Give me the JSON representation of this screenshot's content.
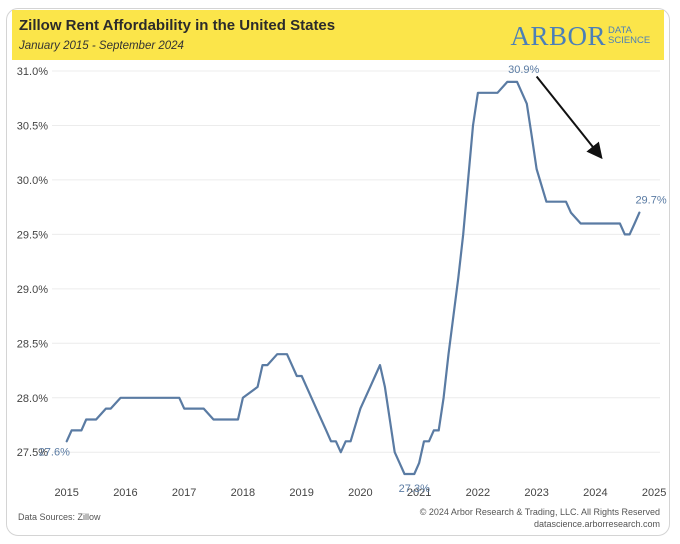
{
  "header": {
    "title": "Zillow Rent Affordability in the United States",
    "subtitle": "January 2015 - September 2024",
    "logo_main": "ARBOR",
    "logo_sub_1": "DATA",
    "logo_sub_2": "SCIENCE"
  },
  "footer": {
    "source": "Data Sources: Zillow",
    "copyright": "© 2024 Arbor Research & Trading, LLC. All Rights Reserved",
    "website": "datascience.arborresearch.com"
  },
  "colors": {
    "banner": "#fbe54a",
    "line": "#5a7ba3",
    "label": "#5a7ba3",
    "arrow": "#111111",
    "brand": "#4b7fb8"
  },
  "chart_data": {
    "type": "line",
    "title": "Zillow Rent Affordability in the United States",
    "subtitle": "January 2015 - September 2024",
    "xlabel": "",
    "ylabel": "",
    "xlim": [
      2014.75,
      2025.1
    ],
    "ylim": [
      27.3,
      31.0
    ],
    "xticks": [
      2015,
      2016,
      2017,
      2018,
      2019,
      2020,
      2021,
      2022,
      2023,
      2024,
      2025
    ],
    "xtick_labels": [
      "2015",
      "2016",
      "2017",
      "2018",
      "2019",
      "2020",
      "2021",
      "2022",
      "2023",
      "2024",
      "2025"
    ],
    "yticks": [
      27.5,
      28.0,
      28.5,
      29.0,
      29.5,
      30.0,
      30.5,
      31.0
    ],
    "ytick_labels": [
      "27.5%",
      "28.0%",
      "28.5%",
      "29.0%",
      "29.5%",
      "30.0%",
      "30.5%",
      "31.0%"
    ],
    "grid": true,
    "series": [
      {
        "name": "Rent Affordability (%)",
        "x": [
          2015.0,
          2015.083,
          2015.25,
          2015.333,
          2015.5,
          2015.667,
          2015.75,
          2015.917,
          2016.0,
          2016.25,
          2016.5,
          2016.75,
          2016.917,
          2017.0,
          2017.25,
          2017.333,
          2017.5,
          2017.75,
          2017.917,
          2018.0,
          2018.25,
          2018.333,
          2018.417,
          2018.583,
          2018.75,
          2018.833,
          2018.917,
          2019.0,
          2019.25,
          2019.417,
          2019.5,
          2019.583,
          2019.667,
          2019.75,
          2019.833,
          2020.0,
          2020.167,
          2020.25,
          2020.333,
          2020.417,
          2020.5,
          2020.583,
          2020.667,
          2020.75,
          2020.833,
          2020.917,
          2021.0,
          2021.083,
          2021.167,
          2021.25,
          2021.333,
          2021.417,
          2021.5,
          2021.667,
          2021.75,
          2021.833,
          2021.917,
          2022.0,
          2022.167,
          2022.25,
          2022.333,
          2022.5,
          2022.583,
          2022.667,
          2022.833,
          2022.917,
          2023.0,
          2023.167,
          2023.333,
          2023.5,
          2023.583,
          2023.75,
          2024.0,
          2024.25,
          2024.333,
          2024.417,
          2024.5,
          2024.583,
          2024.667,
          2024.75
        ],
        "values": [
          27.6,
          27.7,
          27.7,
          27.8,
          27.8,
          27.9,
          27.9,
          28.0,
          28.0,
          28.0,
          28.0,
          28.0,
          28.0,
          27.9,
          27.9,
          27.9,
          27.8,
          27.8,
          27.8,
          28.0,
          28.1,
          28.3,
          28.3,
          28.4,
          28.4,
          28.3,
          28.2,
          28.2,
          27.9,
          27.7,
          27.6,
          27.6,
          27.5,
          27.6,
          27.6,
          27.9,
          28.1,
          28.2,
          28.3,
          28.1,
          27.8,
          27.5,
          27.4,
          27.3,
          27.3,
          27.3,
          27.4,
          27.6,
          27.6,
          27.7,
          27.7,
          28.0,
          28.4,
          29.1,
          29.5,
          30.0,
          30.5,
          30.8,
          30.8,
          30.8,
          30.8,
          30.9,
          30.9,
          30.9,
          30.7,
          30.4,
          30.1,
          29.8,
          29.8,
          29.8,
          29.7,
          29.6,
          29.6,
          29.6,
          29.6,
          29.6,
          29.5,
          29.5,
          29.6,
          29.7
        ]
      }
    ],
    "annotations": [
      {
        "text": "27.6%",
        "x": 2015.0,
        "y": 27.6,
        "placement": "below-left"
      },
      {
        "text": "27.3%",
        "x": 2020.917,
        "y": 27.3,
        "placement": "below"
      },
      {
        "text": "30.9%",
        "x": 2022.583,
        "y": 30.9,
        "placement": "above-right"
      },
      {
        "text": "29.7%",
        "x": 2024.75,
        "y": 29.7,
        "placement": "above-right"
      }
    ],
    "arrow": {
      "from": [
        2023.0,
        30.95
      ],
      "to": [
        2024.08,
        30.22
      ]
    }
  }
}
